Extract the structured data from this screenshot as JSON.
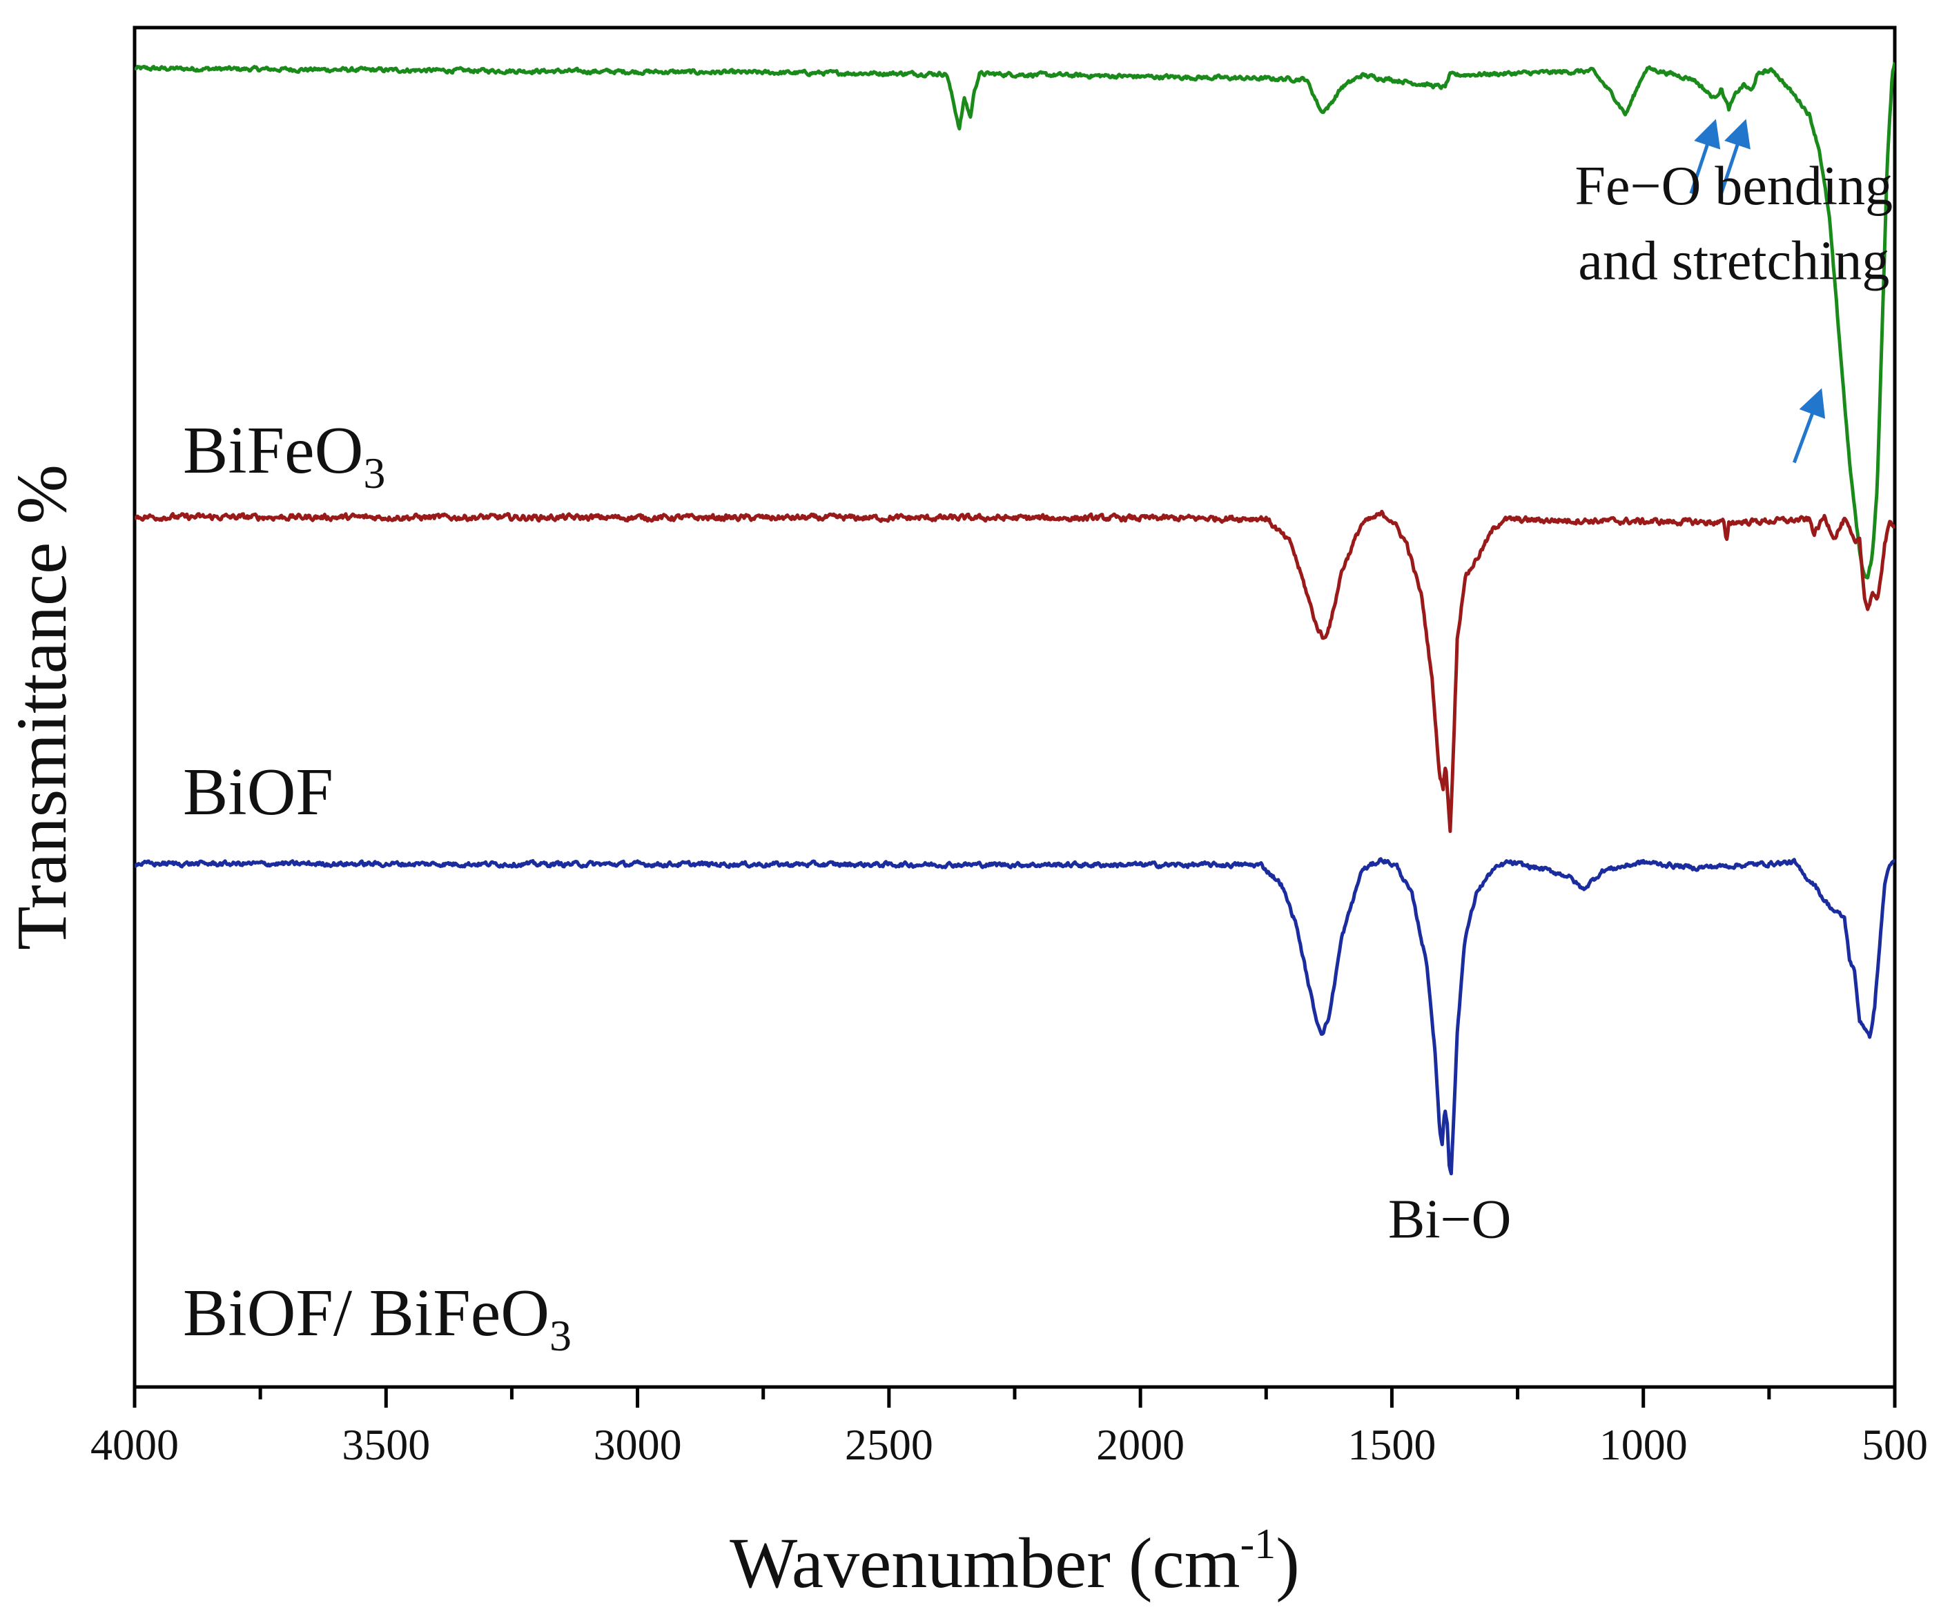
{
  "chart_data": {
    "type": "line",
    "title": "",
    "xlabel": "Wavenumber",
    "xlabel_unit": "(cm",
    "xlabel_unit_exp": "-1",
    "xlabel_unit_close": ")",
    "ylabel": "Transmittance %",
    "xlim": [
      4000,
      500
    ],
    "x_reversed": true,
    "ylim": [
      0,
      100
    ],
    "grid": false,
    "legend": "none",
    "x_ticks": [
      4000,
      3500,
      3000,
      2500,
      2000,
      1500,
      1000,
      500
    ],
    "x_tick_labels": [
      "4000",
      "3500",
      "3000",
      "2500",
      "2000",
      "1500",
      "1000",
      "500"
    ],
    "series": [
      {
        "name": "BiFeO3",
        "label_main": "BiFeO",
        "label_sub": "3",
        "color": "#1a8a1a",
        "baseline": 97.0,
        "noise": 0.25,
        "x": [
          4000,
          2385,
          2360,
          2350,
          2338,
          2330,
          2320,
          1670,
          1640,
          1625,
          1600,
          1560,
          1395,
          1390,
          1385,
          1100,
          1060,
          1035,
          1000,
          990,
          900,
          880,
          860,
          845,
          830,
          815,
          800,
          785,
          775,
          760,
          740,
          720,
          690,
          670,
          650,
          630,
          610,
          590,
          575,
          565,
          555,
          545,
          535,
          525,
          515,
          505,
          500
        ],
        "y": [
          97.0,
          96.6,
          92.6,
          94.8,
          93.4,
          95.4,
          96.6,
          96.2,
          93.8,
          94.2,
          95.6,
          96.5,
          95.6,
          96.0,
          96.5,
          96.8,
          95.0,
          93.6,
          96.6,
          97.0,
          96.2,
          95.5,
          94.8,
          95.5,
          94.0,
          95.2,
          95.8,
          95.3,
          96.4,
          96.8,
          96.8,
          95.9,
          94.6,
          93.6,
          91.0,
          86.0,
          77.0,
          68.0,
          63.0,
          60.2,
          59.5,
          61.0,
          66.0,
          78.0,
          90.0,
          96.5,
          97.5
        ]
      },
      {
        "name": "BiOF",
        "label_main": "BiOF",
        "label_sub": "",
        "color": "#9a1a1a",
        "baseline": 64.0,
        "noise": 0.35,
        "x": [
          4000,
          1750,
          1700,
          1670,
          1650,
          1635,
          1620,
          1600,
          1560,
          1520,
          1500,
          1470,
          1440,
          1420,
          1405,
          1398,
          1393,
          1388,
          1384,
          1380,
          1370,
          1355,
          1330,
          1300,
          1280,
          840,
          835,
          830,
          670,
          660,
          640,
          620,
          600,
          590,
          580,
          570,
          560,
          553,
          545,
          535,
          520,
          510,
          500
        ],
        "y": [
          64.0,
          63.9,
          62.0,
          58.5,
          56.0,
          55.0,
          56.5,
          60.0,
          63.5,
          64.2,
          63.8,
          62.0,
          58.0,
          52.0,
          45.0,
          44.0,
          46.0,
          43.0,
          41.0,
          44.5,
          55.0,
          59.5,
          61.0,
          63.0,
          63.8,
          63.6,
          62.0,
          63.6,
          63.8,
          62.8,
          64.0,
          62.5,
          63.8,
          63.0,
          62.0,
          62.5,
          58.0,
          57.2,
          58.5,
          57.6,
          62.0,
          63.5,
          63.5
        ]
      },
      {
        "name": "BiOF/ BiFeO3",
        "label_main": "BiOF/ BiFeO",
        "label_sub": "3",
        "color": "#1a2c9e",
        "baseline": 38.5,
        "noise": 0.28,
        "x": [
          4000,
          1760,
          1720,
          1690,
          1665,
          1650,
          1638,
          1625,
          1600,
          1560,
          1520,
          1490,
          1460,
          1430,
          1415,
          1405,
          1400,
          1395,
          1390,
          1386,
          1382,
          1378,
          1370,
          1355,
          1330,
          1300,
          1270,
          1200,
          1150,
          1120,
          1080,
          1000,
          900,
          700,
          680,
          660,
          640,
          620,
          600,
          590,
          580,
          570,
          560,
          550,
          540,
          530,
          520,
          510,
          500
        ],
        "y": [
          38.5,
          38.4,
          37.0,
          34.0,
          29.5,
          27.0,
          26.0,
          27.2,
          33.0,
          38.0,
          38.8,
          38.3,
          36.2,
          31.0,
          25.0,
          19.0,
          17.8,
          20.5,
          19.5,
          16.5,
          15.8,
          19.0,
          26.0,
          33.0,
          36.5,
          38.0,
          38.6,
          38.1,
          37.6,
          36.6,
          38.0,
          38.6,
          38.2,
          38.6,
          37.6,
          37.0,
          35.8,
          35.0,
          34.5,
          31.5,
          30.5,
          27.0,
          26.5,
          25.6,
          28.0,
          32.5,
          37.0,
          38.5,
          38.5
        ]
      }
    ],
    "annotations": [
      {
        "text": "Fe−O bending",
        "x": 820,
        "y": 87.0
      },
      {
        "text": "and stretching",
        "x": 820,
        "y": 81.5
      },
      {
        "text": "Bi−O",
        "x": 1385,
        "y": 11.0
      }
    ],
    "arrows": [
      {
        "x1": 905,
        "y1": 87.8,
        "x2": 860,
        "y2": 92.8,
        "color": "#2277cc"
      },
      {
        "x1": 845,
        "y1": 87.8,
        "x2": 800,
        "y2": 92.8,
        "color": "#2277cc"
      },
      {
        "x1": 700,
        "y1": 68.0,
        "x2": 650,
        "y2": 73.0,
        "color": "#2277cc"
      }
    ]
  }
}
